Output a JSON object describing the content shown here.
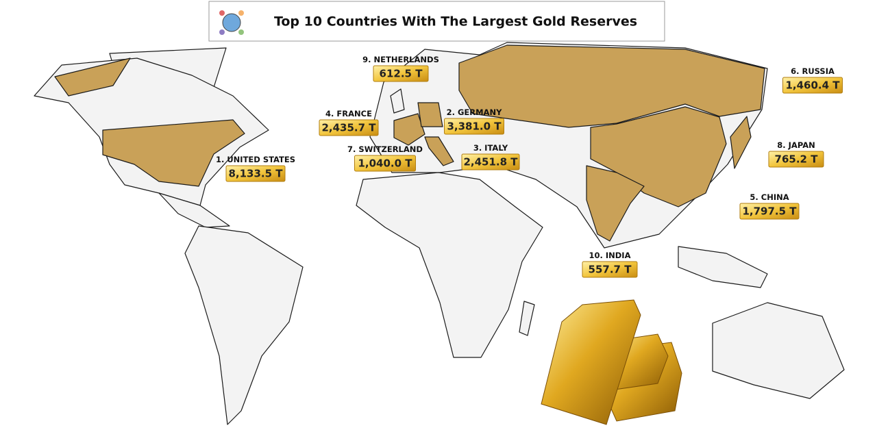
{
  "header": {
    "title": "Top 10 Countries With The Largest Gold Reserves"
  },
  "countries": [
    {
      "label": "1. UNITED STATES",
      "value": "8,133.5 T"
    },
    {
      "label": "2. GERMANY",
      "value": "3,381.0 T"
    },
    {
      "label": "3. ITALY",
      "value": "2,451.8 T"
    },
    {
      "label": "4. FRANCE",
      "value": "2,435.7 T"
    },
    {
      "label": "5. CHINA",
      "value": "1,797.5 T"
    },
    {
      "label": "6. RUSSIA",
      "value": "1,460.4 T"
    },
    {
      "label": "7. SWITZERLAND",
      "value": "1,040.0 T"
    },
    {
      "label": "8. JAPAN",
      "value": "765.2 T"
    },
    {
      "label": "9. NETHERLANDS",
      "value": "612.5 T"
    },
    {
      "label": "10. INDIA",
      "value": "557.7 T"
    }
  ]
}
